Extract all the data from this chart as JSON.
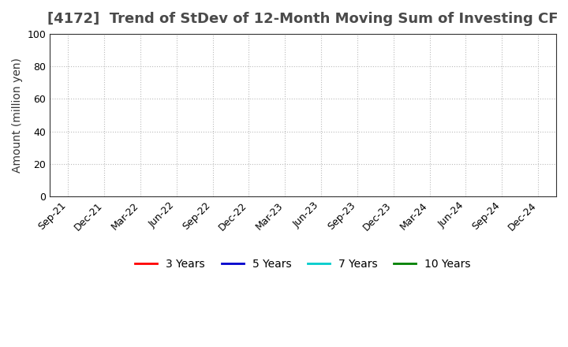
{
  "title_bracket": "[4172]",
  "title_main": "  Trend of StDev of 12-Month Moving Sum of Investing CF",
  "title_bracket_color": "#4a4a4a",
  "title_main_color": "#4a4a4a",
  "ylabel": "Amount (million yen)",
  "ylim": [
    0,
    100
  ],
  "yticks": [
    0,
    20,
    40,
    60,
    80,
    100
  ],
  "x_labels": [
    "Sep-21",
    "Dec-21",
    "Mar-22",
    "Jun-22",
    "Sep-22",
    "Dec-22",
    "Mar-23",
    "Jun-23",
    "Sep-23",
    "Dec-23",
    "Mar-24",
    "Jun-24",
    "Sep-24",
    "Dec-24"
  ],
  "legend_entries": [
    {
      "label": "3 Years",
      "color": "#ff0000"
    },
    {
      "label": "5 Years",
      "color": "#0000cc"
    },
    {
      "label": "7 Years",
      "color": "#00cccc"
    },
    {
      "label": "10 Years",
      "color": "#008000"
    }
  ],
  "background_color": "#ffffff",
  "grid_color": "#bbbbbb",
  "title_fontsize": 13,
  "axis_label_fontsize": 10,
  "tick_fontsize": 9,
  "legend_fontsize": 10
}
